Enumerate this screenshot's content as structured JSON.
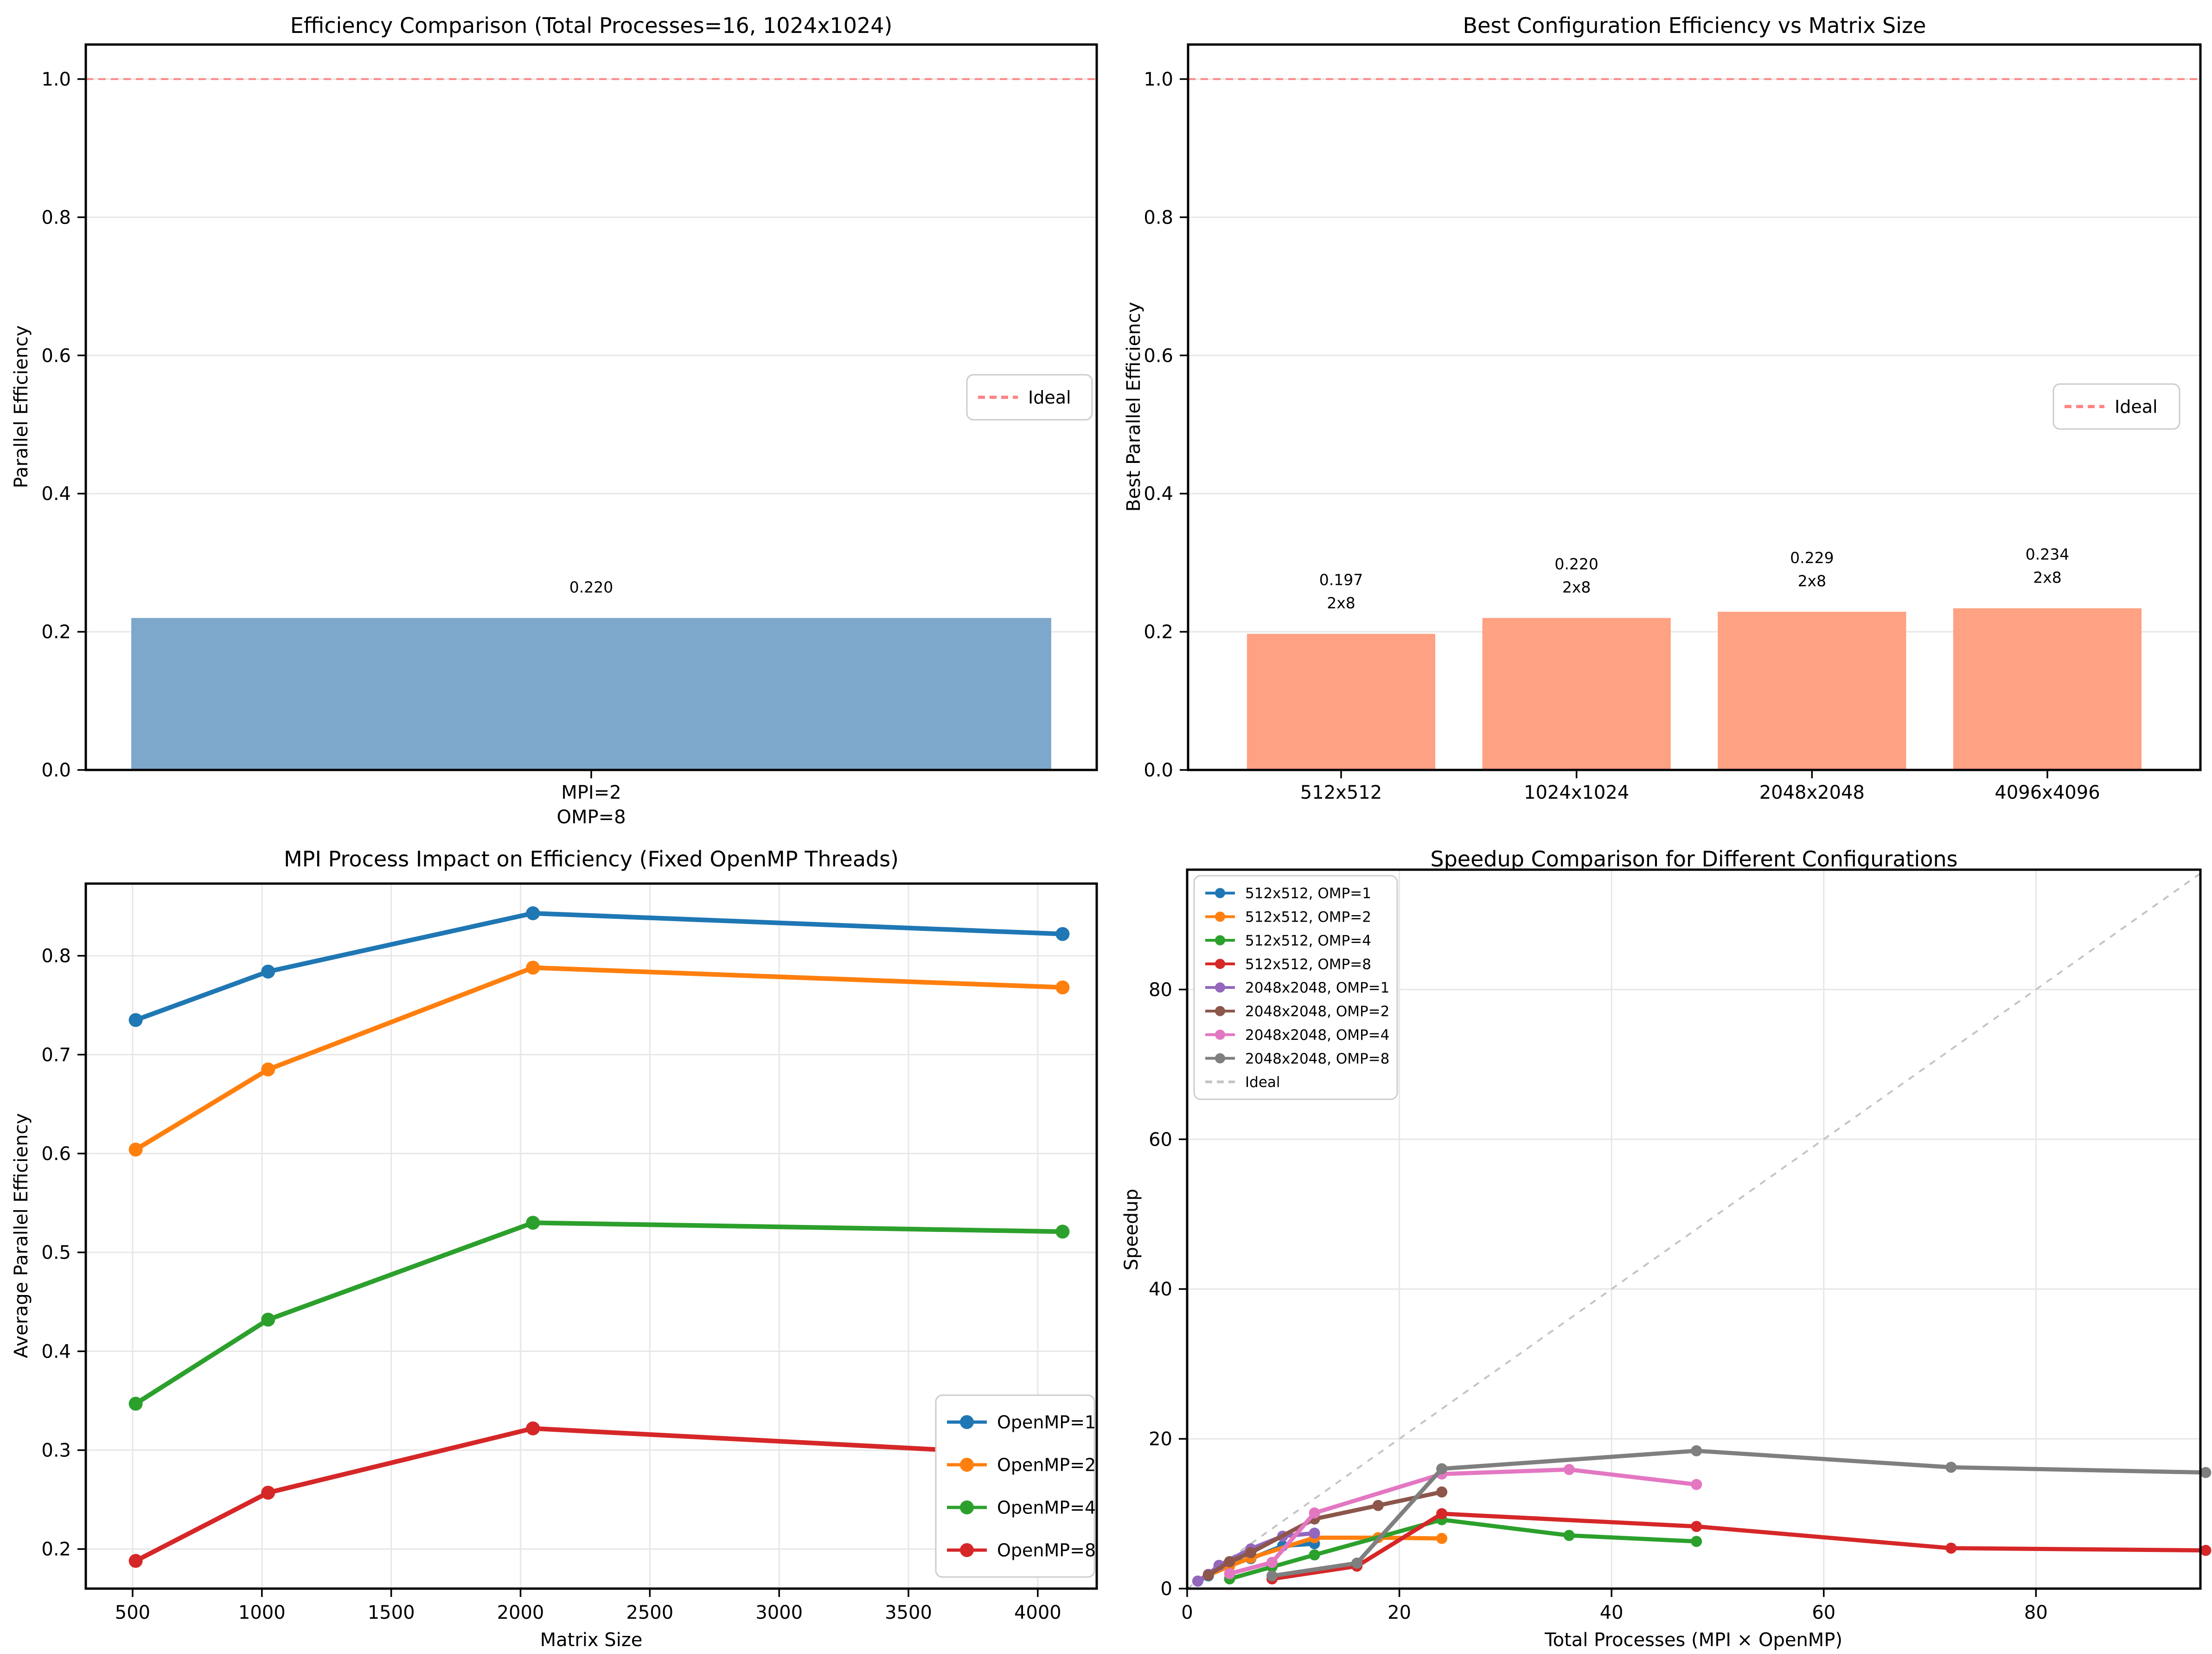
{
  "page": {
    "background": "#ffffff"
  },
  "colors": {
    "steelblue_bar": "#7da7cb",
    "salmon_bar": "#ffa183",
    "ideal_red": "#ff8585",
    "ideal_gray": "#c4c4c4",
    "grid": "#e7e7e7",
    "tab10": [
      "#1f77b4",
      "#ff7f0e",
      "#2ca02c",
      "#d62728",
      "#9467bd",
      "#8c564b",
      "#e377c2",
      "#7f7f7f"
    ]
  },
  "chart_data": [
    {
      "id": "efficiency-comparison",
      "type": "bar",
      "title": "Efficiency Comparison (Total Processes=16, 1024x1024)",
      "ylabel": "Parallel Efficiency",
      "categories": [
        "MPI=2\nOMP=8"
      ],
      "values": [
        0.22
      ],
      "value_labels": [
        "0.220"
      ],
      "bar_color": "#7da7cb",
      "ylim": [
        0,
        1.05
      ],
      "yticks": [
        0,
        0.2,
        0.4,
        0.6,
        0.8,
        1.0
      ],
      "ytick_labels": [
        "0.0",
        "0.2",
        "0.4",
        "0.6",
        "0.8",
        "1.0"
      ],
      "grid": true,
      "ideal_line": {
        "y": 1.0,
        "color": "#ff8585",
        "style": "dashed"
      },
      "legend": {
        "position": "center right",
        "entries": [
          {
            "label": "Ideal",
            "color": "#ff8585",
            "dashed": true
          }
        ]
      }
    },
    {
      "id": "best-configuration-efficiency",
      "type": "bar",
      "title": "Best Configuration Efficiency vs Matrix Size",
      "ylabel": "Best Parallel Efficiency",
      "categories": [
        "512x512",
        "1024x1024",
        "2048x2048",
        "4096x4096"
      ],
      "values": [
        0.197,
        0.22,
        0.229,
        0.234
      ],
      "value_labels": [
        "0.197",
        "0.220",
        "0.229",
        "0.234"
      ],
      "config_labels": [
        "2x8",
        "2x8",
        "2x8",
        "2x8"
      ],
      "bar_color": "#ffa183",
      "ylim": [
        0,
        1.05
      ],
      "yticks": [
        0,
        0.2,
        0.4,
        0.6,
        0.8,
        1.0
      ],
      "ytick_labels": [
        "0.0",
        "0.2",
        "0.4",
        "0.6",
        "0.8",
        "1.0"
      ],
      "grid": true,
      "ideal_line": {
        "y": 1.0,
        "color": "#ff8585",
        "style": "dashed"
      },
      "legend": {
        "position": "center right",
        "entries": [
          {
            "label": "Ideal",
            "color": "#ff8585",
            "dashed": true
          }
        ]
      }
    },
    {
      "id": "mpi-process-impact",
      "type": "line",
      "title": "MPI Process Impact on Efficiency (Fixed OpenMP Threads)",
      "xlabel": "Matrix Size",
      "ylabel": "Average Parallel Efficiency",
      "x": [
        512,
        1024,
        2048,
        4096
      ],
      "series": [
        {
          "name": "OpenMP=1",
          "color": "#1f77b4",
          "values": [
            0.735,
            0.784,
            0.843,
            0.822
          ]
        },
        {
          "name": "OpenMP=2",
          "color": "#ff7f0e",
          "values": [
            0.604,
            0.685,
            0.788,
            0.768
          ]
        },
        {
          "name": "OpenMP=4",
          "color": "#2ca02c",
          "values": [
            0.347,
            0.432,
            0.53,
            0.521
          ]
        },
        {
          "name": "OpenMP=8",
          "color": "#d62728",
          "values": [
            0.188,
            0.257,
            0.322,
            0.294
          ]
        }
      ],
      "xlim": [
        319,
        4228
      ],
      "ylim": [
        0.16,
        0.873
      ],
      "xticks": [
        500,
        1000,
        1500,
        2000,
        2500,
        3000,
        3500,
        4000
      ],
      "xtick_labels": [
        "500",
        "1000",
        "1500",
        "2000",
        "2500",
        "3000",
        "3500",
        "4000"
      ],
      "yticks": [
        0.2,
        0.3,
        0.4,
        0.5,
        0.6,
        0.7,
        0.8
      ],
      "ytick_labels": [
        "0.2",
        "0.3",
        "0.4",
        "0.5",
        "0.6",
        "0.7",
        "0.8"
      ],
      "grid": true,
      "legend": {
        "position": "lower right"
      }
    },
    {
      "id": "speedup-comparison",
      "type": "line",
      "title": "Speedup Comparison for Different Configurations",
      "xlabel": "Total Processes (MPI × OpenMP)",
      "ylabel": "Speedup",
      "series": [
        {
          "name": "512x512, OMP=1",
          "color": "#1f77b4",
          "x": [
            1,
            2,
            3,
            6,
            9,
            12
          ],
          "y": [
            1.0,
            1.7,
            2.9,
            4.0,
            5.7,
            6.0
          ]
        },
        {
          "name": "512x512, OMP=2",
          "color": "#ff7f0e",
          "x": [
            2,
            4,
            6,
            12,
            18,
            24
          ],
          "y": [
            1.8,
            3.0,
            4.1,
            6.8,
            6.8,
            6.7
          ]
        },
        {
          "name": "512x512, OMP=4",
          "color": "#2ca02c",
          "x": [
            4,
            8,
            12,
            24,
            36,
            48
          ],
          "y": [
            1.3,
            2.9,
            4.5,
            9.2,
            7.1,
            6.3
          ]
        },
        {
          "name": "512x512, OMP=8",
          "color": "#d62728",
          "x": [
            8,
            16,
            24,
            48,
            72,
            96
          ],
          "y": [
            1.3,
            3.0,
            10.0,
            8.3,
            5.4,
            5.1
          ]
        },
        {
          "name": "2048x2048, OMP=1",
          "color": "#9467bd",
          "x": [
            1,
            2,
            3,
            6,
            9,
            12
          ],
          "y": [
            1.0,
            1.9,
            3.1,
            5.3,
            7.0,
            7.4
          ]
        },
        {
          "name": "2048x2048, OMP=2",
          "color": "#8c564b",
          "x": [
            2,
            4,
            6,
            12,
            18,
            24
          ],
          "y": [
            1.8,
            3.6,
            4.8,
            9.3,
            11.1,
            12.9
          ]
        },
        {
          "name": "2048x2048, OMP=4",
          "color": "#e377c2",
          "x": [
            4,
            8,
            12,
            24,
            36,
            48
          ],
          "y": [
            2.0,
            3.5,
            10.1,
            15.3,
            15.9,
            13.9
          ]
        },
        {
          "name": "2048x2048, OMP=8",
          "color": "#7f7f7f",
          "x": [
            8,
            16,
            24,
            48,
            72,
            96
          ],
          "y": [
            1.7,
            3.4,
            16.0,
            18.4,
            16.2,
            15.5
          ]
        }
      ],
      "ideal": {
        "label": "Ideal",
        "color": "#c4c4c4",
        "style": "dashed",
        "y_equals_x": true
      },
      "xlim": [
        0,
        95.5
      ],
      "ylim": [
        0,
        96
      ],
      "xticks": [
        0,
        20,
        40,
        60,
        80
      ],
      "xtick_labels": [
        "0",
        "20",
        "40",
        "60",
        "80"
      ],
      "yticks": [
        0,
        20,
        40,
        60,
        80
      ],
      "ytick_labels": [
        "0",
        "20",
        "40",
        "60",
        "80"
      ],
      "grid": true,
      "legend": {
        "position": "upper left"
      }
    }
  ]
}
